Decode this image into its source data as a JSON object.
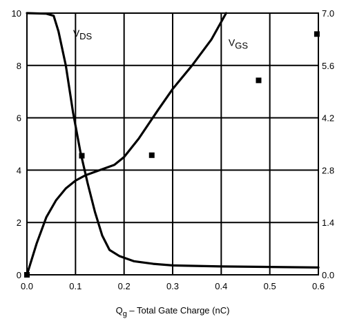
{
  "chart_data": {
    "type": "line",
    "xlabel": {
      "main": "Q",
      "sub": "g",
      "rest": " – Total Gate Charge (nC)"
    },
    "xlim": [
      0,
      0.6
    ],
    "ylim_left": [
      0,
      10
    ],
    "ylim_right": [
      0,
      7.0
    ],
    "x_ticks": [
      "0.0",
      "0.1",
      "0.2",
      "0.3",
      "0.4",
      "0.5",
      "0.6"
    ],
    "y_left_ticks": [
      "0",
      "2",
      "4",
      "6",
      "8",
      "10"
    ],
    "y_right_ticks": [
      "0.0",
      "1.4",
      "2.8",
      "4.2",
      "5.6",
      "7.0"
    ],
    "grid": true,
    "series": [
      {
        "axis": "left",
        "points": [
          [
            0.0,
            10.0
          ],
          [
            0.04,
            9.98
          ],
          [
            0.055,
            9.9
          ],
          [
            0.065,
            9.3
          ],
          [
            0.08,
            8.0
          ],
          [
            0.095,
            6.2
          ],
          [
            0.11,
            4.7
          ],
          [
            0.125,
            3.5
          ],
          [
            0.14,
            2.4
          ],
          [
            0.155,
            1.5
          ],
          [
            0.17,
            0.95
          ],
          [
            0.19,
            0.72
          ],
          [
            0.22,
            0.52
          ],
          [
            0.26,
            0.42
          ],
          [
            0.3,
            0.36
          ],
          [
            0.4,
            0.32
          ],
          [
            0.5,
            0.3
          ],
          [
            0.6,
            0.28
          ]
        ]
      },
      {
        "axis": "left",
        "points": [
          [
            0.0,
            0.0
          ],
          [
            0.02,
            1.2
          ],
          [
            0.04,
            2.2
          ],
          [
            0.06,
            2.85
          ],
          [
            0.08,
            3.3
          ],
          [
            0.1,
            3.6
          ],
          [
            0.12,
            3.8
          ],
          [
            0.15,
            4.0
          ],
          [
            0.18,
            4.2
          ],
          [
            0.2,
            4.5
          ],
          [
            0.23,
            5.2
          ],
          [
            0.27,
            6.3
          ],
          [
            0.3,
            7.1
          ],
          [
            0.34,
            8.0
          ],
          [
            0.38,
            9.0
          ],
          [
            0.41,
            10.0
          ]
        ]
      }
    ],
    "markers": [
      {
        "x": 0.0,
        "y": 0.0
      },
      {
        "x": 0.113,
        "y": 4.55
      },
      {
        "x": 0.257,
        "y": 4.57
      },
      {
        "x": 0.477,
        "y": 7.43
      },
      {
        "x": 0.597,
        "y": 9.2
      }
    ],
    "annotations": [
      {
        "main": "V",
        "sub": "DS",
        "x": 0.095,
        "y": 9.1
      },
      {
        "main": "V",
        "sub": "GS",
        "x": 0.415,
        "y": 8.75
      }
    ]
  }
}
